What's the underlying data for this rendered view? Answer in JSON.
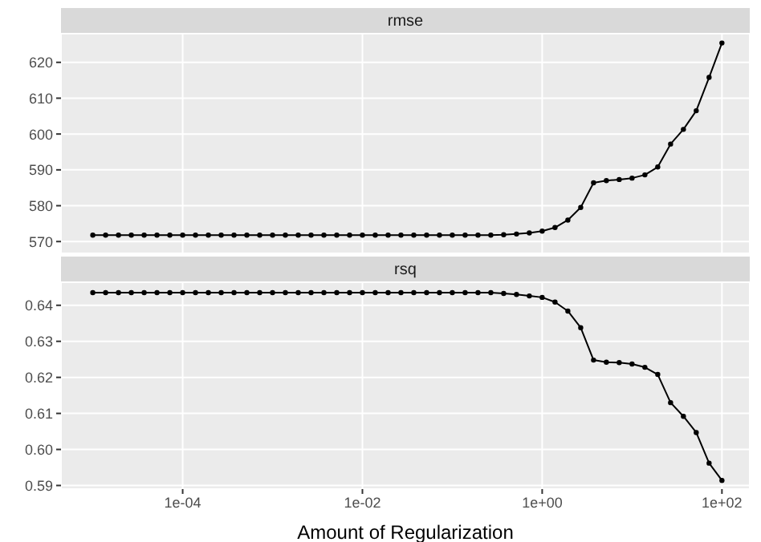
{
  "chart_data": [
    {
      "type": "line",
      "title": "rmse",
      "log": "x",
      "grid": true,
      "marker": "circle",
      "line_style": "solid",
      "tick_labels": "y",
      "color": "#000000",
      "x": [
        1e-05,
        1.389e-05,
        1.931e-05,
        2.683e-05,
        3.728e-05,
        5.179e-05,
        7.197e-05,
        0.0001,
        0.0001389,
        0.0001931,
        0.0002683,
        0.0003728,
        0.0005179,
        0.0007197,
        0.001,
        0.001389,
        0.001931,
        0.002683,
        0.003728,
        0.005179,
        0.007197,
        0.01,
        0.01389,
        0.01931,
        0.02683,
        0.03728,
        0.05179,
        0.07197,
        0.1,
        0.1389,
        0.1931,
        0.2683,
        0.3728,
        0.5179,
        0.7197,
        1,
        1.389,
        1.931,
        2.683,
        3.728,
        5.179,
        7.197,
        10,
        13.89,
        19.31,
        26.83,
        37.28,
        51.79,
        71.97,
        100
      ],
      "values": [
        571.8,
        571.8,
        571.8,
        571.8,
        571.8,
        571.8,
        571.8,
        571.8,
        571.8,
        571.8,
        571.8,
        571.8,
        571.8,
        571.8,
        571.8,
        571.8,
        571.8,
        571.8,
        571.8,
        571.8,
        571.8,
        571.8,
        571.8,
        571.8,
        571.8,
        571.8,
        571.8,
        571.8,
        571.8,
        571.8,
        571.8,
        571.8,
        571.9,
        572.1,
        572.4,
        572.9,
        573.9,
        576,
        579.5,
        586.4,
        587,
        587.3,
        587.7,
        588.6,
        590.8,
        597.2,
        601.3,
        606.5,
        615.8,
        625.4
      ],
      "xlim": [
        4.43e-06,
        204
      ],
      "xticks": [
        {
          "value": 0.0001,
          "label": null
        },
        {
          "value": 0.01,
          "label": null
        },
        {
          "value": 1,
          "label": null
        },
        {
          "value": 100,
          "label": null
        }
      ],
      "ylim": [
        566.7,
        628
      ],
      "yticks": [
        570,
        580,
        590,
        600,
        610,
        620
      ]
    },
    {
      "type": "line",
      "title": "rsq",
      "xlabel": "Amount of Regularization",
      "log": "x",
      "grid": true,
      "marker": "circle",
      "line_style": "solid",
      "color": "#000000",
      "x": [
        1e-05,
        1.389e-05,
        1.931e-05,
        2.683e-05,
        3.728e-05,
        5.179e-05,
        7.197e-05,
        0.0001,
        0.0001389,
        0.0001931,
        0.0002683,
        0.0003728,
        0.0005179,
        0.0007197,
        0.001,
        0.001389,
        0.001931,
        0.002683,
        0.003728,
        0.005179,
        0.007197,
        0.01,
        0.01389,
        0.01931,
        0.02683,
        0.03728,
        0.05179,
        0.07197,
        0.1,
        0.1389,
        0.1931,
        0.2683,
        0.3728,
        0.5179,
        0.7197,
        1,
        1.389,
        1.931,
        2.683,
        3.728,
        5.179,
        7.197,
        10,
        13.89,
        19.31,
        26.83,
        37.28,
        51.79,
        71.97,
        100
      ],
      "values": [
        0.6435,
        0.6435,
        0.6435,
        0.6435,
        0.6435,
        0.6435,
        0.6435,
        0.6435,
        0.6435,
        0.6435,
        0.6435,
        0.6435,
        0.6435,
        0.6435,
        0.6435,
        0.6435,
        0.6435,
        0.6435,
        0.6435,
        0.6435,
        0.6435,
        0.6435,
        0.6435,
        0.6435,
        0.6435,
        0.6435,
        0.6435,
        0.6435,
        0.6435,
        0.6435,
        0.6435,
        0.6435,
        0.6433,
        0.643,
        0.6426,
        0.6422,
        0.6409,
        0.6384,
        0.6338,
        0.6248,
        0.6242,
        0.6241,
        0.6237,
        0.6228,
        0.6208,
        0.613,
        0.6092,
        0.6047,
        0.5962,
        0.5914
      ],
      "xlim": [
        4.43e-06,
        204
      ],
      "xticks": [
        {
          "value": 0.0001,
          "label": "1e-04"
        },
        {
          "value": 0.01,
          "label": "1e-02"
        },
        {
          "value": 1,
          "label": "1e+00"
        },
        {
          "value": 100,
          "label": "1e+02"
        }
      ],
      "ylim": [
        0.589,
        0.6464
      ],
      "yticks": [
        0.59,
        {
          "value": 0.6,
          "label": "0.60"
        },
        0.61,
        0.62,
        0.63,
        0.64
      ]
    }
  ]
}
